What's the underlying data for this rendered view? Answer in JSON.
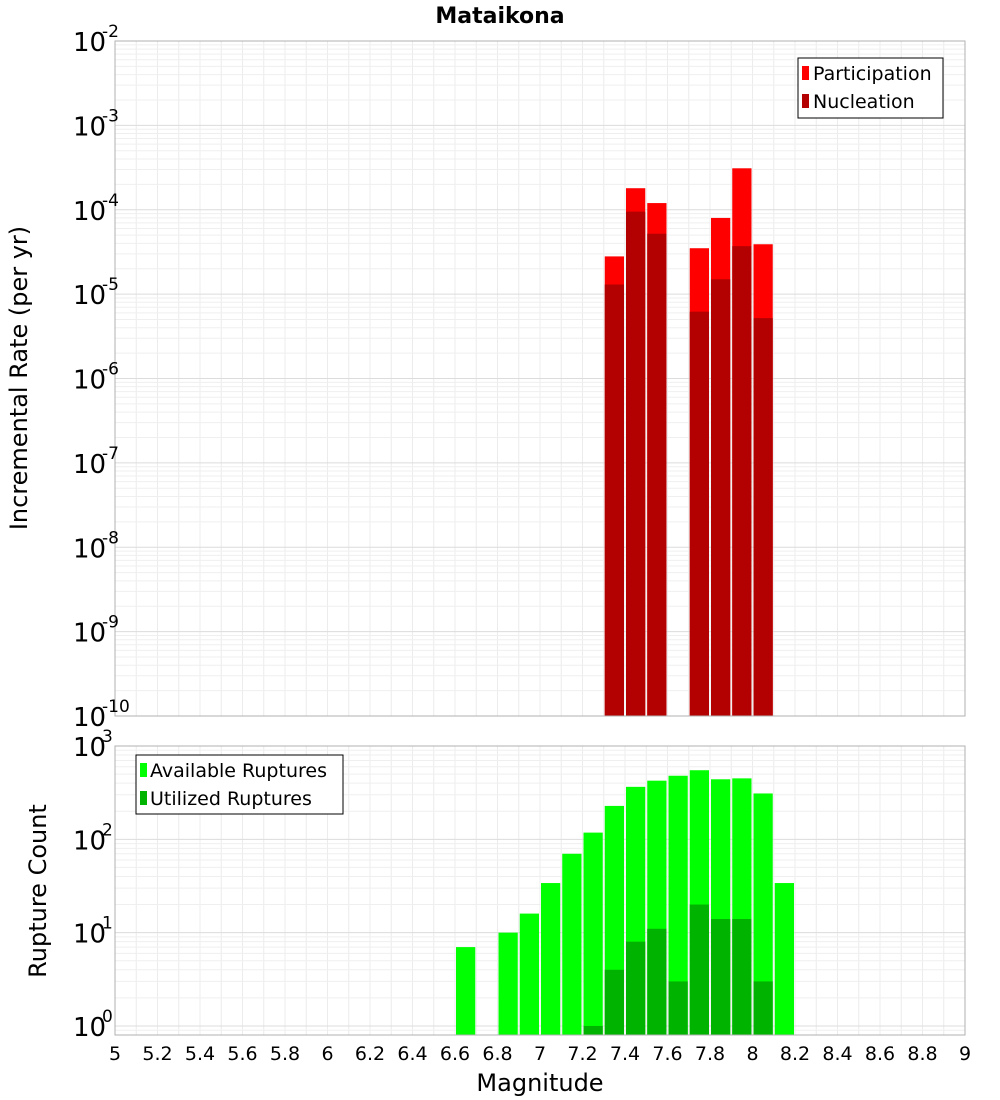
{
  "chart_data": [
    {
      "type": "bar",
      "panel": "top",
      "title": "Mataikona",
      "xlabel": "Magnitude",
      "ylabel": "Incremental Rate (per yr)",
      "xlim": [
        5,
        9
      ],
      "ylim_exp": [
        -10,
        -2
      ],
      "yscale": "log",
      "y_ticks": [
        {
          "base": "10",
          "exp": "-10"
        },
        {
          "base": "10",
          "exp": "-9"
        },
        {
          "base": "10",
          "exp": "-8"
        },
        {
          "base": "10",
          "exp": "-7"
        },
        {
          "base": "10",
          "exp": "-6"
        },
        {
          "base": "10",
          "exp": "-5"
        },
        {
          "base": "10",
          "exp": "-4"
        },
        {
          "base": "10",
          "exp": "-3"
        },
        {
          "base": "10",
          "exp": "-2"
        }
      ],
      "legend_position": "top-right",
      "series": [
        {
          "name": "Participation",
          "color": "#ff0000",
          "x": [
            7.35,
            7.45,
            7.55,
            7.75,
            7.85,
            7.95,
            8.05
          ],
          "values": [
            2.8e-05,
            0.00018,
            0.00012,
            3.5e-05,
            8e-05,
            0.00031,
            3.9e-05
          ]
        },
        {
          "name": "Nucleation",
          "color": "#b30000",
          "x": [
            7.35,
            7.45,
            7.55,
            7.75,
            7.85,
            7.95,
            8.05
          ],
          "values": [
            1.3e-05,
            9.5e-05,
            5.2e-05,
            6.2e-06,
            1.5e-05,
            3.7e-05,
            5.2e-06
          ]
        }
      ]
    },
    {
      "type": "bar",
      "panel": "bottom",
      "xlabel": "Magnitude",
      "ylabel": "Rupture Count",
      "xlim": [
        5,
        9
      ],
      "ylim": [
        0.8,
        1000
      ],
      "yscale": "log",
      "x_ticks": [
        "5",
        "5.2",
        "5.4",
        "5.6",
        "5.8",
        "6",
        "6.2",
        "6.4",
        "6.6",
        "6.8",
        "7",
        "7.2",
        "7.4",
        "7.6",
        "7.8",
        "8",
        "8.2",
        "8.4",
        "8.6",
        "8.8",
        "9"
      ],
      "y_ticks": [
        {
          "base": "10",
          "exp": "0"
        },
        {
          "base": "10",
          "exp": "1"
        },
        {
          "base": "10",
          "exp": "2"
        },
        {
          "base": "10",
          "exp": "3"
        }
      ],
      "legend_position": "top-left",
      "series": [
        {
          "name": "Available Ruptures",
          "color": "#00ff00",
          "x": [
            6.65,
            6.85,
            6.95,
            7.05,
            7.15,
            7.25,
            7.35,
            7.45,
            7.55,
            7.65,
            7.75,
            7.85,
            7.95,
            8.05,
            8.15
          ],
          "values": [
            7,
            10,
            16,
            34,
            70,
            118,
            228,
            365,
            425,
            480,
            550,
            440,
            450,
            310,
            34
          ]
        },
        {
          "name": "Utilized Ruptures",
          "color": "#00b300",
          "x": [
            7.25,
            7.35,
            7.45,
            7.55,
            7.65,
            7.75,
            7.85,
            7.95,
            8.05
          ],
          "values": [
            1,
            4,
            8,
            11,
            3,
            20,
            14,
            14,
            3
          ]
        }
      ]
    }
  ]
}
